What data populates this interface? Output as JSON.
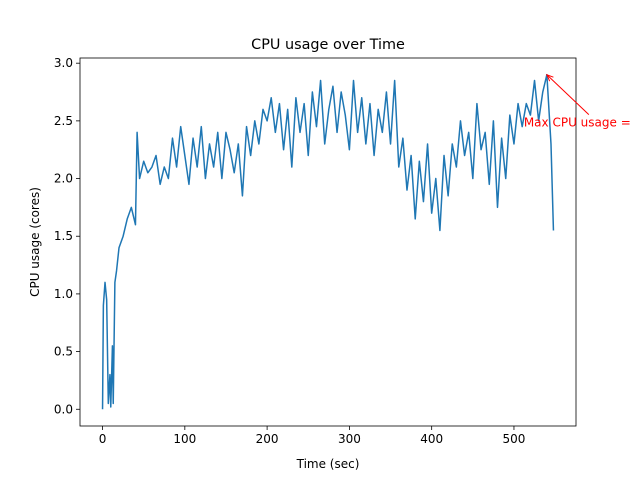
{
  "chart_data": {
    "type": "line",
    "title": "CPU usage over Time",
    "xlabel": "Time (sec)",
    "ylabel": "CPU usage (cores)",
    "color": "#1f77b4",
    "x": [
      0,
      1,
      3,
      5,
      7,
      9,
      10,
      12,
      13,
      15,
      17,
      20,
      25,
      30,
      35,
      40,
      42,
      45,
      50,
      55,
      60,
      65,
      70,
      75,
      80,
      85,
      90,
      95,
      100,
      105,
      110,
      115,
      120,
      125,
      130,
      135,
      140,
      145,
      150,
      155,
      160,
      165,
      170,
      175,
      180,
      185,
      190,
      195,
      200,
      205,
      210,
      215,
      220,
      225,
      230,
      235,
      240,
      245,
      250,
      255,
      260,
      265,
      270,
      275,
      280,
      285,
      290,
      295,
      300,
      305,
      310,
      315,
      320,
      325,
      330,
      335,
      340,
      345,
      350,
      355,
      360,
      365,
      370,
      375,
      380,
      385,
      390,
      395,
      400,
      405,
      410,
      415,
      420,
      425,
      430,
      435,
      440,
      445,
      450,
      455,
      460,
      465,
      470,
      475,
      480,
      485,
      490,
      495,
      500,
      505,
      510,
      515,
      520,
      525,
      530,
      535,
      540,
      545,
      548
    ],
    "values": [
      0.0,
      0.9,
      1.1,
      0.95,
      0.05,
      0.3,
      0.02,
      0.55,
      0.05,
      1.1,
      1.2,
      1.4,
      1.5,
      1.65,
      1.75,
      1.6,
      2.4,
      2.0,
      2.15,
      2.05,
      2.1,
      2.2,
      1.95,
      2.1,
      2.0,
      2.35,
      2.1,
      2.45,
      2.2,
      1.95,
      2.35,
      2.1,
      2.45,
      2.0,
      2.3,
      2.1,
      2.4,
      2.0,
      2.4,
      2.25,
      2.05,
      2.3,
      1.85,
      2.45,
      2.2,
      2.5,
      2.3,
      2.6,
      2.5,
      2.7,
      2.4,
      2.65,
      2.25,
      2.6,
      2.1,
      2.7,
      2.4,
      2.65,
      2.2,
      2.75,
      2.45,
      2.85,
      2.3,
      2.6,
      2.8,
      2.4,
      2.75,
      2.55,
      2.25,
      2.85,
      2.4,
      2.7,
      2.3,
      2.65,
      2.2,
      2.6,
      2.4,
      2.75,
      2.3,
      2.85,
      2.1,
      2.35,
      1.9,
      2.2,
      1.65,
      2.15,
      1.8,
      2.3,
      1.7,
      2.0,
      1.55,
      2.2,
      1.85,
      2.3,
      2.1,
      2.5,
      2.2,
      2.4,
      2.0,
      2.65,
      2.25,
      2.4,
      1.95,
      2.5,
      1.75,
      2.35,
      2.0,
      2.55,
      2.3,
      2.65,
      2.45,
      2.65,
      2.55,
      2.85,
      2.5,
      2.75,
      2.9,
      2.3,
      1.55
    ],
    "xlim": [
      -27.4,
      575.4
    ],
    "ylim": [
      -0.145,
      3.045
    ],
    "xticks": [
      0,
      100,
      200,
      300,
      400,
      500
    ],
    "yticks": [
      {
        "value": 0,
        "label": "0.0"
      },
      {
        "value": 0.5,
        "label": "0.5"
      },
      {
        "value": 1,
        "label": "1.0"
      },
      {
        "value": 1.5,
        "label": "1.5"
      },
      {
        "value": 2,
        "label": "2.0"
      },
      {
        "value": 2.5,
        "label": "2.5"
      },
      {
        "value": 3,
        "label": "3.0"
      }
    ],
    "annotation": {
      "text": "Max CPU usage =",
      "xy": [
        540,
        2.9
      ],
      "xytext": [
        512,
        2.45
      ],
      "color": "red"
    }
  }
}
